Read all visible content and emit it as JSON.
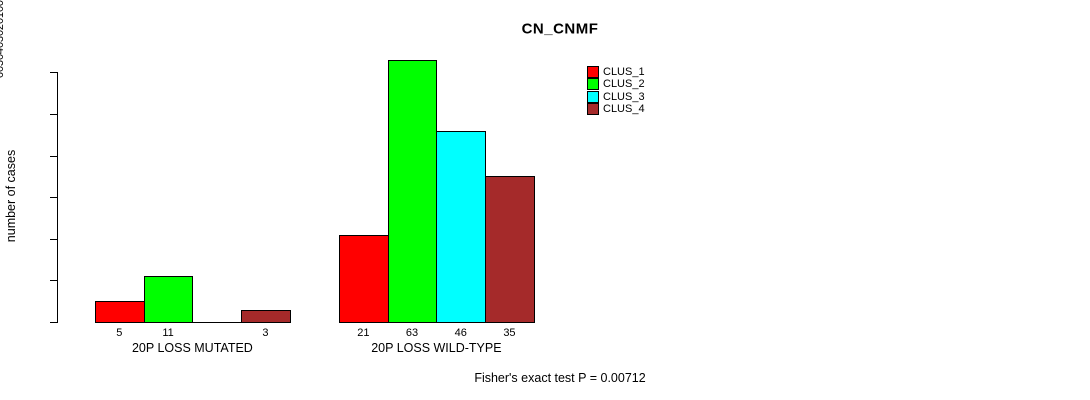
{
  "window": {
    "background_color": "#FFFFFF",
    "text_color": "#000000"
  },
  "chart_data": {
    "type": "bar",
    "title": "CN_CNMF",
    "ylabel": "number of cases",
    "xlabel": "",
    "categories": [
      "20P LOSS MUTATED",
      "20P LOSS WILD-TYPE"
    ],
    "series": [
      {
        "name": "CLUS_1",
        "color": "#FF0000",
        "values": [
          5,
          21
        ]
      },
      {
        "name": "CLUS_2",
        "color": "#00FF00",
        "values": [
          11,
          63
        ]
      },
      {
        "name": "CLUS_3",
        "color": "#00FFFF",
        "values": [
          0,
          46
        ]
      },
      {
        "name": "CLUS_4",
        "color": "#A52A2A",
        "values": [
          3,
          35
        ]
      }
    ],
    "bar_value_labels": [
      [
        "5",
        "11",
        "",
        "3"
      ],
      [
        "21",
        "63",
        "46",
        "35"
      ]
    ],
    "yticks": [
      0,
      10,
      20,
      30,
      40,
      50,
      60
    ],
    "ylim": [
      0,
      63
    ],
    "grid": false,
    "legend": {
      "position": "inside-top-right-of-title",
      "entries": [
        "CLUS_1",
        "CLUS_2",
        "CLUS_3",
        "CLUS_4"
      ],
      "colors": [
        "#FF0000",
        "#00FF00",
        "#00FFFF",
        "#A52A2A"
      ]
    },
    "annotation": "Fisher's exact test P = 0.00712",
    "axis_color": "#000000"
  }
}
